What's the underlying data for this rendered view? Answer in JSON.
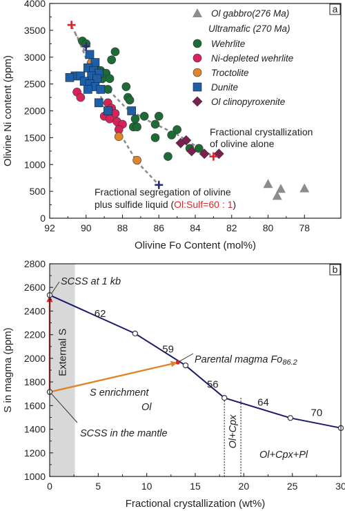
{
  "chart_data": [
    {
      "type": "scatter",
      "panel_label": "a",
      "xlabel": "Olivine Fo Content (mol%)",
      "ylabel": "Olivine Ni content (ppm)",
      "xlim": [
        92,
        76
      ],
      "ylim": [
        0,
        4000
      ],
      "x_ticks": [
        "92",
        "90",
        "88",
        "86",
        "84",
        "82",
        "80",
        "78"
      ],
      "y_ticks": [
        "0",
        "500",
        "1000",
        "1500",
        "2000",
        "2500",
        "3000",
        "3500",
        "4000"
      ],
      "legend": {
        "placement": "top-right",
        "gabbro_label": "Ol gabbro(276 Ma)",
        "group_label": "Ultramafic (270 Ma)"
      },
      "series": [
        {
          "name": "Wehrlite",
          "marker": "circle",
          "color": "#1e6b35",
          "points": [
            [
              90.2,
              3300
            ],
            [
              90.0,
              3250
            ],
            [
              88.4,
              3100
            ],
            [
              88.6,
              2950
            ],
            [
              89.5,
              2800
            ],
            [
              89.2,
              2750
            ],
            [
              88.9,
              2700
            ],
            [
              89.1,
              2600
            ],
            [
              88.7,
              2600
            ],
            [
              87.8,
              2450
            ],
            [
              88.8,
              2400
            ],
            [
              87.7,
              2250
            ],
            [
              87.6,
              2200
            ],
            [
              86.8,
              1900
            ],
            [
              87.3,
              1850
            ],
            [
              86.0,
              1900
            ],
            [
              86.2,
              1750
            ],
            [
              87.4,
              1700
            ],
            [
              87.2,
              1700
            ],
            [
              85.0,
              1650
            ],
            [
              86.2,
              1500
            ],
            [
              85.3,
              1550
            ],
            [
              84.3,
              1300
            ],
            [
              83.8,
              1300
            ],
            [
              85.5,
              1150
            ]
          ]
        },
        {
          "name": "Ni-depleted wehrlite",
          "marker": "circle",
          "color": "#d6245a",
          "points": [
            [
              90.5,
              2350
            ],
            [
              90.3,
              2250
            ],
            [
              88.8,
              2150
            ],
            [
              88.6,
              2050
            ],
            [
              88.4,
              1950
            ],
            [
              89.0,
              1900
            ],
            [
              88.7,
              1850
            ],
            [
              88.3,
              1800
            ],
            [
              88.0,
              1750
            ],
            [
              88.2,
              1650
            ]
          ]
        },
        {
          "name": "Troctolite",
          "marker": "circle",
          "color": "#e0842c",
          "points": [
            [
              89.7,
              2900
            ],
            [
              88.2,
              1520
            ],
            [
              87.2,
              1080
            ]
          ]
        },
        {
          "name": "Dunite",
          "marker": "square",
          "color": "#1f5fa8",
          "points": [
            [
              89.8,
              3050
            ],
            [
              89.5,
              2900
            ],
            [
              89.9,
              2800
            ],
            [
              89.6,
              2750
            ],
            [
              89.3,
              2700
            ],
            [
              90.6,
              2650
            ],
            [
              90.3,
              2650
            ],
            [
              89.7,
              2650
            ],
            [
              90.9,
              2620
            ],
            [
              89.4,
              2600
            ],
            [
              90.1,
              2550
            ],
            [
              89.8,
              2500
            ],
            [
              89.5,
              2450
            ],
            [
              89.9,
              2400
            ],
            [
              89.2,
              2400
            ],
            [
              89.3,
              2150
            ],
            [
              88.8,
              2000
            ],
            [
              87.5,
              2000
            ]
          ]
        },
        {
          "name": "Ol clinopyroxenite",
          "marker": "diamond",
          "color": "#7a1f4f",
          "points": [
            [
              84.5,
              1450
            ],
            [
              84.8,
              1400
            ],
            [
              84.2,
              1250
            ],
            [
              83.5,
              1200
            ],
            [
              82.7,
              1200
            ]
          ]
        },
        {
          "name": "Ol gabbro(276 Ma)",
          "marker": "triangle",
          "color": "#8c8c8c",
          "points": [
            [
              80.0,
              640
            ],
            [
              79.3,
              550
            ],
            [
              79.5,
              420
            ],
            [
              78.0,
              560
            ]
          ]
        }
      ],
      "curves": [
        {
          "type": "dashed",
          "color": "#8c8c8c",
          "points": [
            [
              90.8,
              3580
            ],
            [
              90.2,
              3200
            ],
            [
              89.6,
              2800
            ],
            [
              88.8,
              2400
            ],
            [
              87.8,
              2050
            ],
            [
              86.5,
              1800
            ],
            [
              85.0,
              1560
            ],
            [
              84.0,
              1350
            ],
            [
              83.0,
              1150
            ]
          ]
        },
        {
          "type": "dashed",
          "color": "#8c8c8c",
          "points": [
            [
              90.6,
              3450
            ],
            [
              90.2,
              3150
            ],
            [
              89.8,
              2800
            ],
            [
              89.4,
              2400
            ],
            [
              88.8,
              2000
            ],
            [
              88.0,
              1500
            ],
            [
              87.2,
              1050
            ],
            [
              86.0,
              620
            ]
          ]
        }
      ],
      "end_markers": [
        {
          "color": "#d62728",
          "x": 90.8,
          "y": 3600
        },
        {
          "color": "#d62728",
          "x": 83.0,
          "y": 1150
        },
        {
          "color": "#2a2a7a",
          "x": 90.0,
          "y": 3200
        },
        {
          "color": "#2a2a7a",
          "x": 86.0,
          "y": 620
        }
      ],
      "annotations": {
        "fc_line1": "Fractional crystallization",
        "fc_line2": "of olivine alone",
        "seg_line1": "Fractional segregation of olivine",
        "seg_line2_prefix": "plus sulfide liquid (",
        "seg_line2_ratio": "Ol:Sulf=60 : 1",
        "seg_line2_suffix": ")"
      }
    },
    {
      "type": "line",
      "panel_label": "b",
      "xlabel": "Fractional crystallization (wt%)",
      "ylabel": "S in magma (ppm)",
      "xlim": [
        0,
        30
      ],
      "ylim": [
        1000,
        2800
      ],
      "x_ticks": [
        "0",
        "5",
        "10",
        "15",
        "20",
        "25",
        "30"
      ],
      "y_ticks": [
        "1000",
        "1200",
        "1400",
        "1600",
        "1800",
        "2000",
        "2200",
        "2400",
        "2600",
        "2800"
      ],
      "series": [
        {
          "name": "",
          "color": "#1a1a6e",
          "x": [
            0,
            8.8,
            14,
            18,
            24.8,
            30
          ],
          "y": [
            2535,
            2210,
            1940,
            1665,
            1495,
            1410
          ]
        }
      ],
      "segment_labels": [
        {
          "text": "62",
          "x": 5.2,
          "y": 2350
        },
        {
          "text": "59",
          "x": 12.2,
          "y": 2050
        },
        {
          "text": "56",
          "x": 16.8,
          "y": 1750
        },
        {
          "text": "64",
          "x": 22.0,
          "y": 1600
        },
        {
          "text": "70",
          "x": 27.5,
          "y": 1510
        }
      ],
      "shaded_region": {
        "x_from": 0,
        "x_to": 2.6,
        "color": "#d8d8d8",
        "label": "External S"
      },
      "phase_dividers": [
        18,
        19.7
      ],
      "phase_labels": {
        "ol": "Ol",
        "ol_cpx": "Ol+Cpx",
        "ol_cpx_pl": "Ol+Cpx+Pl"
      },
      "arrows": [
        {
          "name": "external-s-arrow",
          "color": "#d62728",
          "from": [
            0,
            1715
          ],
          "to": [
            0,
            2535
          ]
        },
        {
          "name": "s-enrichment-arrow",
          "color": "#e0842c",
          "from": [
            0,
            1715
          ],
          "to": [
            13.2,
            1965
          ]
        }
      ],
      "marker_points": {
        "scss_mantle": [
          0,
          1715
        ],
        "scss_1kb": [
          0,
          2535
        ],
        "parental": [
          13.2,
          1965
        ]
      },
      "annotations": {
        "scss_1kb": "SCSS at 1 kb",
        "scss_mantle": "SCSS in the mantle",
        "parental_prefix": "Parental magma Fo",
        "parental_sub": "86.2",
        "s_enrichment": "S enrichment"
      }
    }
  ]
}
